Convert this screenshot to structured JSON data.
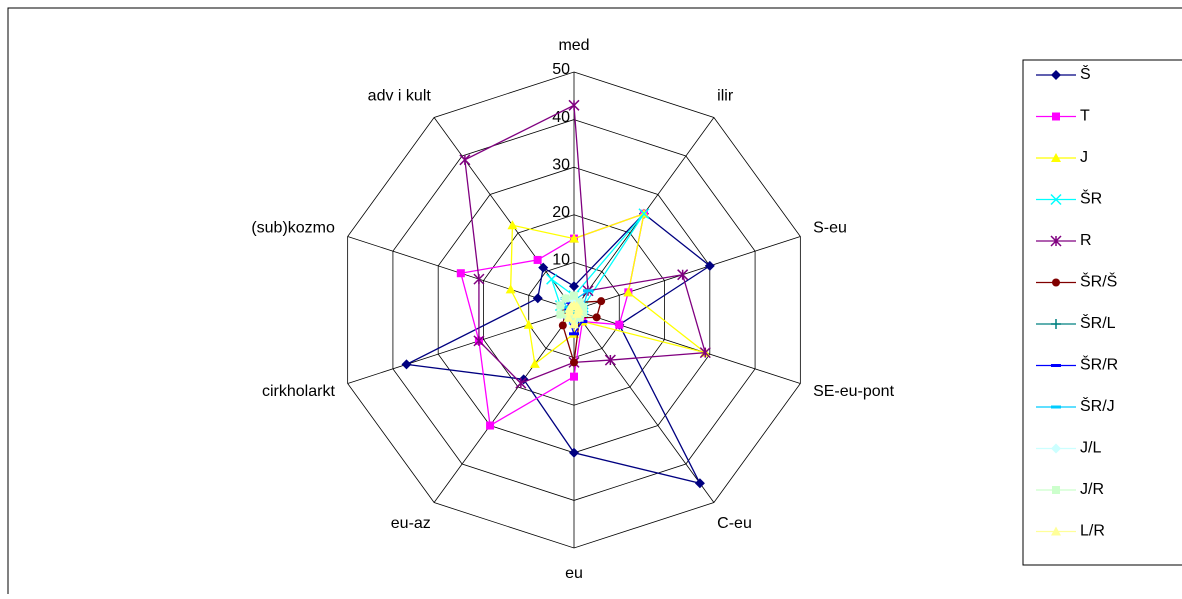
{
  "chart_data": {
    "type": "radar",
    "categories": [
      "med",
      "ilir",
      "S-eu",
      "SE-eu-pont",
      "C-eu",
      "eu",
      "eu-az",
      "cirkholarkt",
      "(sub)kozmo",
      "adv i kult"
    ],
    "ylim": [
      0,
      50
    ],
    "yticks": [
      0,
      10,
      20,
      30,
      40,
      50
    ],
    "series": [
      {
        "name": "Š",
        "color": "#000080",
        "marker": "diamond",
        "values": [
          5,
          25,
          30,
          10,
          45,
          30,
          18,
          37,
          8,
          11
        ]
      },
      {
        "name": "T",
        "color": "#ff00ff",
        "marker": "square",
        "values": [
          15,
          25,
          12,
          10,
          3,
          14,
          30,
          21,
          25,
          13
        ]
      },
      {
        "name": "J",
        "color": "#ffff00",
        "marker": "triangle",
        "values": [
          15,
          25,
          12,
          29,
          3,
          5,
          14,
          10,
          14,
          22
        ]
      },
      {
        "name": "ŠR",
        "color": "#00ffff",
        "marker": "x",
        "values": [
          3,
          25,
          2,
          2,
          1,
          2,
          2,
          2,
          3,
          8
        ]
      },
      {
        "name": "R",
        "color": "#800080",
        "marker": "star",
        "values": [
          43,
          5,
          24,
          29,
          13,
          11,
          19,
          21,
          21,
          39
        ]
      },
      {
        "name": "ŠR/Š",
        "color": "#800000",
        "marker": "circle",
        "values": [
          1,
          2,
          6,
          5,
          2,
          11,
          4,
          2,
          1,
          1
        ]
      },
      {
        "name": "ŠR/L",
        "color": "#008080",
        "marker": "plus",
        "values": [
          1,
          1,
          1,
          1,
          1,
          1,
          1,
          1,
          1,
          1
        ]
      },
      {
        "name": "ŠR/R",
        "color": "#0000ff",
        "marker": "dash",
        "values": [
          1,
          2,
          1,
          2,
          3,
          5,
          2,
          1,
          1,
          2
        ]
      },
      {
        "name": "ŠR/J",
        "color": "#00ccff",
        "marker": "dash",
        "values": [
          2,
          5,
          2,
          2,
          1,
          2,
          1,
          1,
          2,
          3
        ]
      },
      {
        "name": "J/L",
        "color": "#ccffff",
        "marker": "diamond",
        "values": [
          2,
          2,
          2,
          2,
          2,
          2,
          2,
          3,
          3,
          3
        ]
      },
      {
        "name": "J/R",
        "color": "#ccffcc",
        "marker": "square",
        "values": [
          3,
          2,
          2,
          2,
          2,
          2,
          2,
          3,
          3,
          3
        ]
      },
      {
        "name": "L/R",
        "color": "#ffff99",
        "marker": "triangle",
        "values": [
          1,
          1,
          1,
          1,
          1,
          3,
          2,
          1,
          1,
          1
        ]
      }
    ]
  }
}
